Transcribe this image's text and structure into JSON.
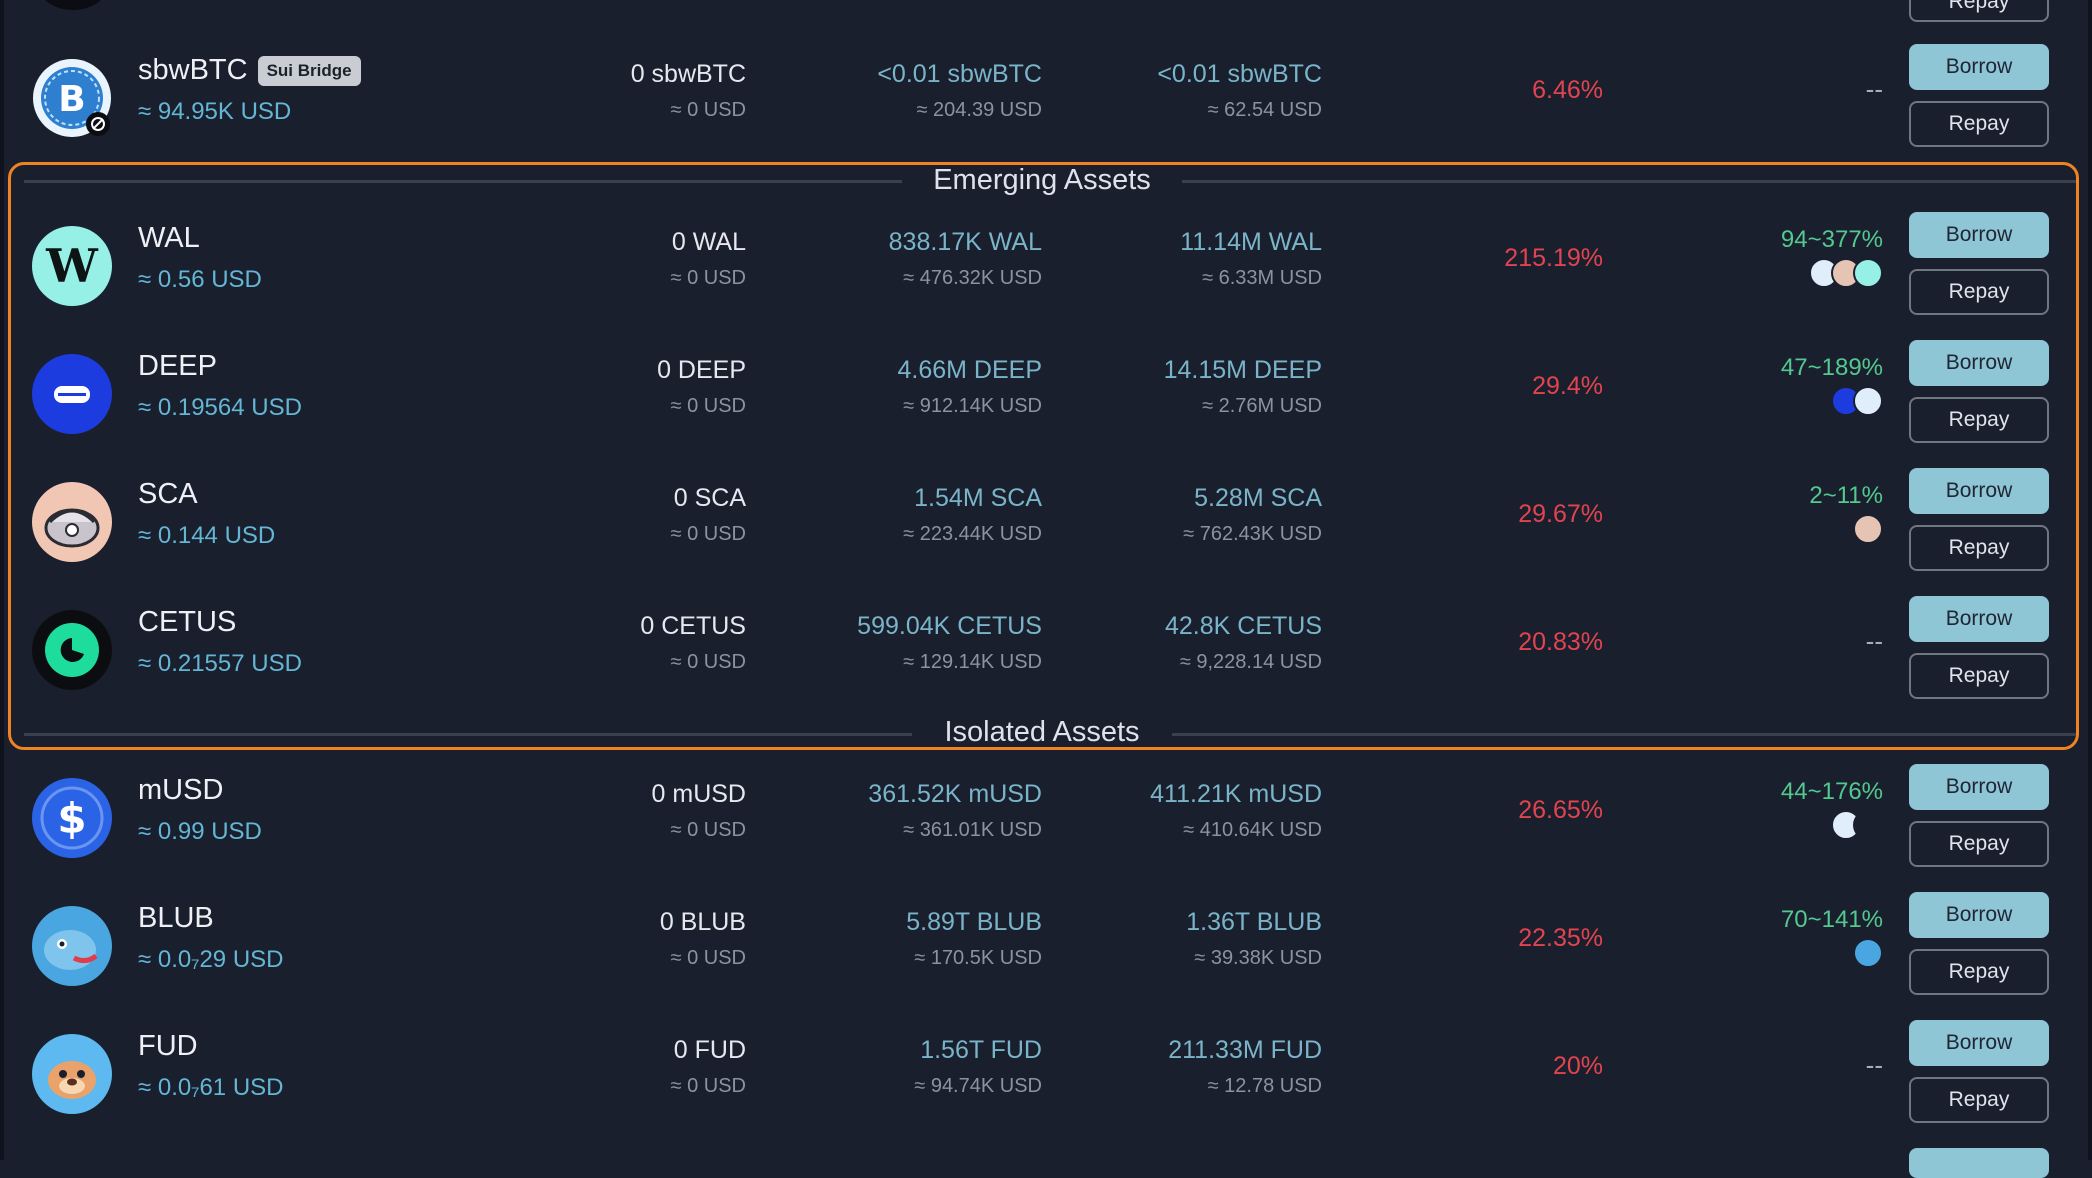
{
  "top_partial": {
    "repay_label": "Repay"
  },
  "sections": {
    "emerging": "Emerging Assets",
    "isolated": "Isolated Assets"
  },
  "buttons": {
    "borrow": "Borrow",
    "repay": "Repay"
  },
  "assets": [
    {
      "name": "sbwBTC",
      "badge": "Sui Bridge",
      "price": "≈ 94.95K USD",
      "wallet": "0 sbwBTC",
      "wallet_usd": "≈ 0 USD",
      "supplied": "<0.01 sbwBTC",
      "supplied_usd": "≈ 204.39 USD",
      "borrowed": "<0.01 sbwBTC",
      "borrowed_usd": "≈ 62.54 USD",
      "apr": "6.46%",
      "rewards": "--",
      "icon": "bitcoin-icon",
      "color": "#2f7fd0"
    },
    {
      "name": "WAL",
      "price": "≈ 0.56 USD",
      "wallet": "0 WAL",
      "wallet_usd": "≈ 0 USD",
      "supplied": "838.17K WAL",
      "supplied_usd": "≈ 476.32K USD",
      "borrowed": "11.14M WAL",
      "borrowed_usd": "≈ 6.33M USD",
      "apr": "215.19%",
      "rewards": "94~377%",
      "icon": "wal-icon",
      "color": "#97f0e5"
    },
    {
      "name": "DEEP",
      "price": "≈ 0.19564 USD",
      "wallet": "0 DEEP",
      "wallet_usd": "≈ 0 USD",
      "supplied": "4.66M DEEP",
      "supplied_usd": "≈ 912.14K USD",
      "borrowed": "14.15M DEEP",
      "borrowed_usd": "≈ 2.76M USD",
      "apr": "29.4%",
      "rewards": "47~189%",
      "icon": "deep-icon",
      "color": "#1c3ce0"
    },
    {
      "name": "SCA",
      "price": "≈ 0.144 USD",
      "wallet": "0 SCA",
      "wallet_usd": "≈ 0 USD",
      "supplied": "1.54M SCA",
      "supplied_usd": "≈ 223.44K USD",
      "borrowed": "5.28M SCA",
      "borrowed_usd": "≈ 762.43K USD",
      "apr": "29.67%",
      "rewards": "2~11%",
      "icon": "sca-icon",
      "color": "#f1c7b4"
    },
    {
      "name": "CETUS",
      "price": "≈ 0.21557 USD",
      "wallet": "0 CETUS",
      "wallet_usd": "≈ 0 USD",
      "supplied": "599.04K CETUS",
      "supplied_usd": "≈ 129.14K USD",
      "borrowed": "42.8K CETUS",
      "borrowed_usd": "≈ 9,228.14 USD",
      "apr": "20.83%",
      "rewards": "--",
      "icon": "cetus-icon",
      "color": "#1edc9b"
    },
    {
      "name": "mUSD",
      "price": "≈ 0.99 USD",
      "wallet": "0 mUSD",
      "wallet_usd": "≈ 0 USD",
      "supplied": "361.52K mUSD",
      "supplied_usd": "≈ 361.01K USD",
      "borrowed": "411.21K mUSD",
      "borrowed_usd": "≈ 410.64K USD",
      "apr": "26.65%",
      "rewards": "44~176%",
      "icon": "dollar-icon",
      "color": "#2a63e6"
    },
    {
      "name": "BLUB",
      "price": "≈ 0.0₇29 USD",
      "wallet": "0 BLUB",
      "wallet_usd": "≈ 0 USD",
      "supplied": "5.89T BLUB",
      "supplied_usd": "≈ 170.5K USD",
      "borrowed": "1.36T BLUB",
      "borrowed_usd": "≈ 39.38K USD",
      "apr": "22.35%",
      "rewards": "70~141%",
      "icon": "blub-icon",
      "color": "#4aa6e0"
    },
    {
      "name": "FUD",
      "price": "≈ 0.0₇61 USD",
      "wallet": "0 FUD",
      "wallet_usd": "≈ 0 USD",
      "supplied": "1.56T FUD",
      "supplied_usd": "≈ 94.74K USD",
      "borrowed": "211.33M FUD",
      "borrowed_usd": "≈ 12.78 USD",
      "apr": "20%",
      "rewards": "--",
      "icon": "fud-icon",
      "color": "#5db9ef"
    }
  ]
}
